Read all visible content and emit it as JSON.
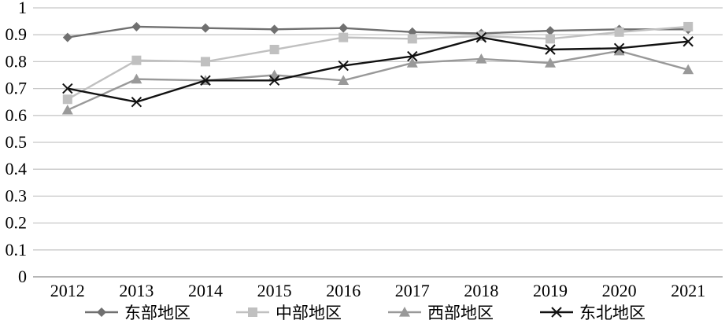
{
  "chart_data": {
    "type": "line",
    "title": "",
    "xlabel": "",
    "ylabel": "",
    "x": [
      "2012",
      "2013",
      "2014",
      "2015",
      "2016",
      "2017",
      "2018",
      "2019",
      "2020",
      "2021"
    ],
    "ylim": [
      0,
      1
    ],
    "yticks": [
      "0",
      "0.1",
      "0.2",
      "0.3",
      "0.4",
      "0.5",
      "0.6",
      "0.7",
      "0.8",
      "0.9",
      "1"
    ],
    "grid": "horizontal",
    "legend_position": "bottom",
    "series": [
      {
        "name": "东部地区",
        "marker": "diamond",
        "color": "#707070",
        "values": [
          0.89,
          0.93,
          0.925,
          0.92,
          0.925,
          0.91,
          0.905,
          0.915,
          0.92,
          0.92
        ]
      },
      {
        "name": "中部地区",
        "marker": "square",
        "color": "#c0c0c0",
        "values": [
          0.66,
          0.805,
          0.8,
          0.845,
          0.89,
          0.885,
          0.895,
          0.885,
          0.91,
          0.93
        ]
      },
      {
        "name": "西部地区",
        "marker": "triangle",
        "color": "#999999",
        "values": [
          0.62,
          0.735,
          0.73,
          0.75,
          0.73,
          0.795,
          0.81,
          0.795,
          0.84,
          0.77
        ]
      },
      {
        "name": "东北地区",
        "marker": "x",
        "color": "#111111",
        "values": [
          0.7,
          0.65,
          0.73,
          0.73,
          0.785,
          0.82,
          0.89,
          0.845,
          0.85,
          0.875
        ]
      }
    ]
  }
}
